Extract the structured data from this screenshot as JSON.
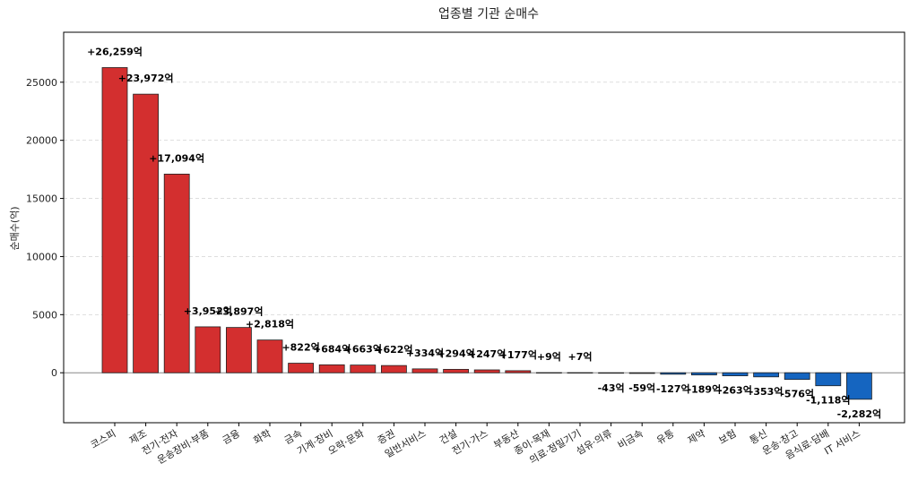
{
  "chart_data": {
    "type": "bar",
    "title": "업종별 기관 순매수",
    "xlabel": "",
    "ylabel": "순매수(억)",
    "ylim": [
      -4300,
      29300
    ],
    "yticks": [
      0,
      5000,
      10000,
      15000,
      20000,
      25000
    ],
    "grid": {
      "y": true,
      "x": false
    },
    "positive_color": "#D32F2F",
    "negative_color": "#1565C0",
    "categories": [
      "코스피",
      "제조",
      "전기·전자",
      "운송장비·부품",
      "금융",
      "화학",
      "금속",
      "기계·장비",
      "오락·문화",
      "증권",
      "일반서비스",
      "건설",
      "전기·가스",
      "부동산",
      "종이·목재",
      "의료·정밀기기",
      "섬유·의류",
      "비금속",
      "유통",
      "제약",
      "보험",
      "통신",
      "운송·창고",
      "음식료·담배",
      "IT 서비스"
    ],
    "values": [
      26259,
      23972,
      17094,
      3952,
      3897,
      2818,
      822,
      684,
      663,
      622,
      334,
      294,
      247,
      177,
      9,
      7,
      -43,
      -59,
      -127,
      -189,
      -263,
      -353,
      -576,
      -1118,
      -2282
    ],
    "data_labels": [
      "+26,259억",
      "+23,972억",
      "+17,094억",
      "+3,952억",
      "+3,897억",
      "+2,818억",
      "+822억",
      "+684억",
      "+663억",
      "+622억",
      "+334억",
      "+294억",
      "+247억",
      "+177억",
      "+9억",
      "+7억",
      "-43억",
      "-59억",
      "-127억",
      "-189억",
      "-263억",
      "-353억",
      "-576억",
      "-1,118억",
      "-2,282억"
    ]
  }
}
